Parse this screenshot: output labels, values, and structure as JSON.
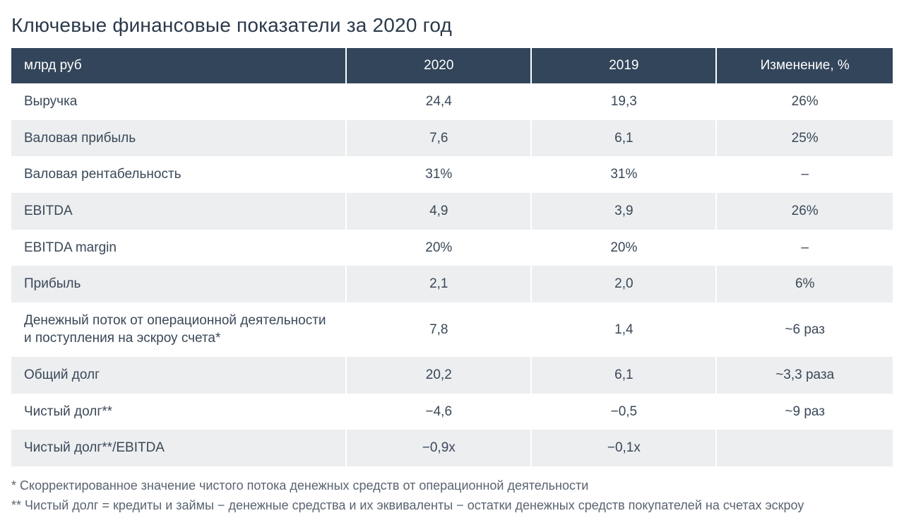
{
  "title": "Ключевые финансовые показатели за 2020 год",
  "table": {
    "type": "table",
    "header_bg": "#32455a",
    "header_text_color": "#ffffff",
    "row_alt_bg": "#eceef0",
    "row_bg": "#ffffff",
    "text_color": "#3a4858",
    "font_size_pt": 14,
    "columns": [
      {
        "label": "млрд руб",
        "align": "left",
        "width_pct": 38
      },
      {
        "label": "2020",
        "align": "center",
        "width_pct": 21
      },
      {
        "label": "2019",
        "align": "center",
        "width_pct": 21
      },
      {
        "label": "Изменение, %",
        "align": "center",
        "width_pct": 20
      }
    ],
    "rows": [
      {
        "c0": "Выручка",
        "c1": "24,4",
        "c2": "19,3",
        "c3": "26%"
      },
      {
        "c0": "Валовая прибыль",
        "c1": "7,6",
        "c2": "6,1",
        "c3": "25%"
      },
      {
        "c0": "Валовая рентабельность",
        "c1": "31%",
        "c2": "31%",
        "c3": "–"
      },
      {
        "c0": "EBITDA",
        "c1": "4,9",
        "c2": "3,9",
        "c3": "26%"
      },
      {
        "c0": "EBITDA margin",
        "c1": "20%",
        "c2": "20%",
        "c3": "–"
      },
      {
        "c0": "Прибыль",
        "c1": "2,1",
        "c2": "2,0",
        "c3": "6%"
      },
      {
        "c0": "Денежный поток от операционной деятельности и поступления на эскроу счета*",
        "c1": "7,8",
        "c2": "1,4",
        "c3": "~6 раз"
      },
      {
        "c0": "Общий долг",
        "c1": "20,2",
        "c2": "6,1",
        "c3": "~3,3 раза"
      },
      {
        "c0": "Чистый долг**",
        "c1": "−4,6",
        "c2": "−0,5",
        "c3": "~9 раз"
      },
      {
        "c0": "Чистый долг**/EBITDA",
        "c1": "−0,9x",
        "c2": "−0,1x",
        "c3": ""
      }
    ]
  },
  "footnotes": {
    "note1": "* Скорректированное значение чистого потока денежных средств от операционной деятельности",
    "note2": "** Чистый долг = кредиты и займы − денежные средства и их эквиваленты − остатки денежных средств покупателей на счетах эскроу"
  }
}
